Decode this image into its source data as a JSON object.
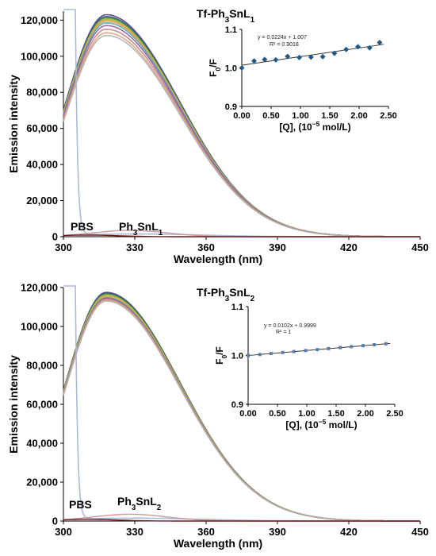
{
  "chart_data": [
    {
      "type": "line",
      "title_html": [
        "Tf-Ph",
        "3",
        "SnL",
        "1"
      ],
      "xlabel": "Wavelength (nm)",
      "ylabel": "Emission intensity",
      "xlim": [
        300,
        450
      ],
      "ylim": [
        0,
        125000
      ],
      "xticks": [
        "300",
        "330",
        "360",
        "390",
        "420",
        "450"
      ],
      "yticks": [
        "0",
        "20,000",
        "40,000",
        "60,000",
        "80,000",
        "100,000",
        "120,000"
      ],
      "annotations": {
        "pbs": "PBS",
        "compound": [
          "Ph",
          "3",
          "SnL",
          "1"
        ]
      },
      "peak": {
        "x": 318,
        "values": [
          123000,
          122000,
          121500,
          121000,
          120500,
          120000,
          119500,
          118500,
          117000,
          115000,
          113000,
          111500
        ]
      },
      "inset": {
        "xlabel_parts": [
          "[Q], (10",
          "−5",
          " mol/L)"
        ],
        "ylabel_parts": [
          "F",
          "0",
          "/F"
        ],
        "xlim": [
          0,
          2.5
        ],
        "ylim": [
          0.9,
          1.1
        ],
        "xticks": [
          "0.00",
          "0.50",
          "1.00",
          "1.50",
          "2.00",
          "2.50"
        ],
        "yticks": [
          "0.9",
          "1.0",
          "1.1"
        ],
        "equation": "y = 0.0224x + 1.007",
        "r2": "R² = 0.9018",
        "fit": {
          "slope": 0.0224,
          "intercept": 1.007
        },
        "x": [
          0.0,
          0.21,
          0.39,
          0.58,
          0.78,
          0.98,
          1.18,
          1.38,
          1.58,
          1.78,
          1.98,
          2.18,
          2.35
        ],
        "y": [
          1.0,
          1.018,
          1.022,
          1.021,
          1.03,
          1.027,
          1.028,
          1.029,
          1.038,
          1.048,
          1.055,
          1.052,
          1.066
        ]
      }
    },
    {
      "type": "line",
      "title_html": [
        "Tf-Ph",
        "3",
        "SnL",
        "2"
      ],
      "xlabel": "Wavelength (nm)",
      "ylabel": "Emission intensity",
      "xlim": [
        300,
        450
      ],
      "ylim": [
        0,
        120000
      ],
      "xticks": [
        "300",
        "330",
        "360",
        "390",
        "420",
        "450"
      ],
      "yticks": [
        "0",
        "20,000",
        "40,000",
        "60,000",
        "80,000",
        "100,000",
        "120,000"
      ],
      "annotations": {
        "pbs": "PBS",
        "compound": [
          "Ph",
          "3",
          "SnL",
          "2"
        ]
      },
      "peak": {
        "x": 318,
        "values": [
          117500,
          117000,
          116800,
          116400,
          116000,
          115600,
          115200,
          114800,
          114400,
          114000,
          113500,
          113000
        ]
      },
      "inset": {
        "xlabel_parts": [
          "[Q], (10",
          "−5",
          " mol/L)"
        ],
        "ylabel_parts": [
          "F",
          "0",
          "/F"
        ],
        "xlim": [
          0,
          2.5
        ],
        "ylim": [
          0.9,
          1.1
        ],
        "xticks": [
          "0.00",
          "0.50",
          "1.00",
          "1.50",
          "2.00",
          "2.50"
        ],
        "yticks": [
          "0.9",
          "1.0",
          "1.1"
        ],
        "equation": "y = 0.0102x + 0.9999",
        "r2": "R² = 1",
        "fit": {
          "slope": 0.0102,
          "intercept": 0.9999
        },
        "x": [
          0.0,
          0.2,
          0.39,
          0.59,
          0.78,
          0.98,
          1.18,
          1.37,
          1.57,
          1.76,
          1.96,
          2.15,
          2.35
        ],
        "y": [
          1.0,
          1.002,
          1.004,
          1.006,
          1.008,
          1.01,
          1.012,
          1.014,
          1.016,
          1.018,
          1.02,
          1.022,
          1.024
        ]
      }
    }
  ],
  "colors": {
    "curves": [
      "#4b3b7a",
      "#2b4fa0",
      "#3c7a3a",
      "#6aa84f",
      "#9fc33a",
      "#e0b040",
      "#e59a5c",
      "#4aa6b5",
      "#8a5aa0",
      "#c78080",
      "#d9a07c",
      "#b0b0b0"
    ],
    "pbs": "#aebbd8",
    "baseline_a": "#c99aa0",
    "baseline_b": "#6b1a1a",
    "marker1": "#1f5b86",
    "marker2": "#5a7fa8",
    "fit": "#333333"
  }
}
